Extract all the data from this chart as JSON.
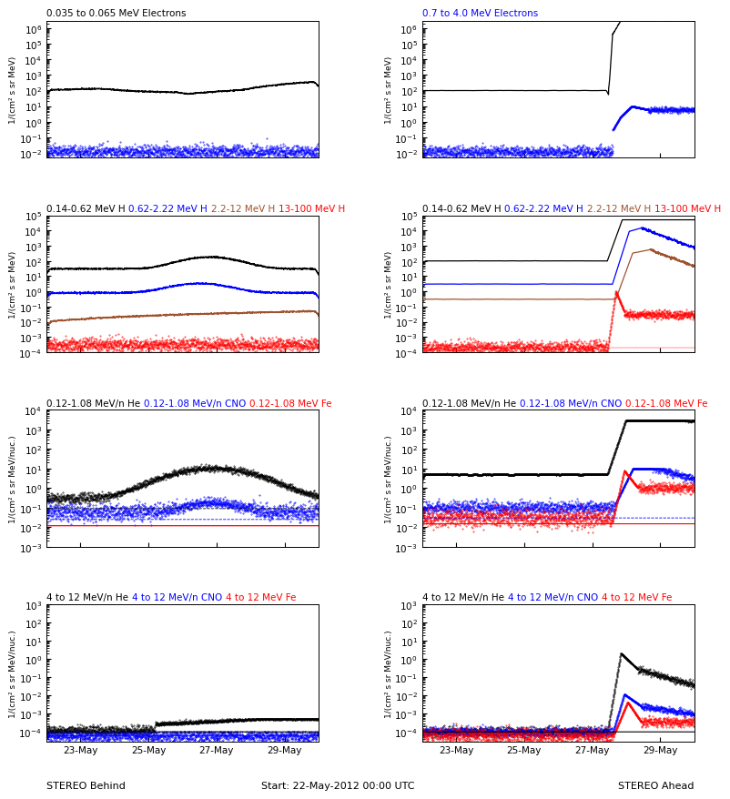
{
  "title_L0": "0.035 to 0.065 MeV Electrons",
  "title_R0": "0.7 to 4.0 MeV Electrons",
  "title_L1": [
    [
      "0.14-0.62 MeV H",
      "#000000"
    ],
    [
      "0.62-2.22 MeV H",
      "#0000FF"
    ],
    [
      "2.2-12 MeV H",
      "#A0522D"
    ],
    [
      "13-100 MeV H",
      "#FF0000"
    ]
  ],
  "title_R1": [
    [
      "0.14-0.62 MeV H",
      "#000000"
    ],
    [
      "0.62-2.22 MeV H",
      "#0000FF"
    ],
    [
      "2.2-12 MeV H",
      "#A0522D"
    ],
    [
      "13-100 MeV H",
      "#FF0000"
    ]
  ],
  "title_L2": [
    [
      "0.12-1.08 MeV/n He",
      "#000000"
    ],
    [
      "0.12-1.08 MeV/n CNO",
      "#0000FF"
    ],
    [
      "0.12-1.08 MeV Fe",
      "#FF0000"
    ]
  ],
  "title_R2": [
    [
      "0.12-1.08 MeV/n He",
      "#000000"
    ],
    [
      "0.12-1.08 MeV/n CNO",
      "#0000FF"
    ],
    [
      "0.12-1.08 MeV Fe",
      "#FF0000"
    ]
  ],
  "title_L3": [
    [
      "4 to 12 MeV/n He",
      "#000000"
    ],
    [
      "4 to 12 MeV/n CNO",
      "#0000FF"
    ],
    [
      "4 to 12 MeV Fe",
      "#FF0000"
    ]
  ],
  "title_R3": [
    [
      "4 to 12 MeV/n He",
      "#000000"
    ],
    [
      "4 to 12 MeV/n CNO",
      "#0000FF"
    ],
    [
      "4 to 12 MeV Fe",
      "#FF0000"
    ]
  ],
  "xlabel_left": "STEREO Behind",
  "xlabel_right": "STEREO Ahead",
  "xlabel_center": "Start: 22-May-2012 00:00 UTC",
  "ylabel_e": "1/(cm² s sr MeV)",
  "ylabel_H": "1/(cm² s sr MeV)",
  "ylabel_nuc": "1/(cm² s sr MeV/nuc.)",
  "xtick_labels": [
    "23-May",
    "25-May",
    "27-May",
    "29-May"
  ],
  "color_black": "#000000",
  "color_blue": "#0000FF",
  "color_brown": "#A0522D",
  "color_red": "#FF0000",
  "n_points": 1600
}
